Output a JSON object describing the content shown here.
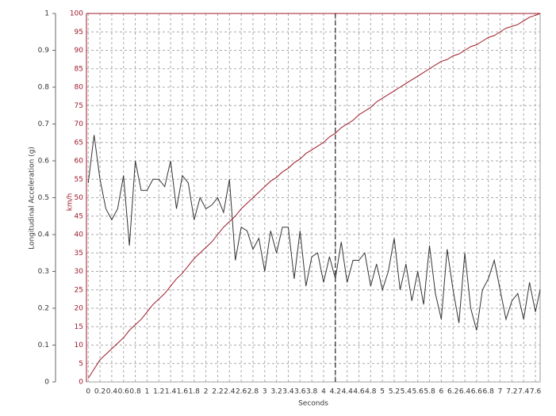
{
  "chart_data": {
    "type": "line",
    "x_label": "Seconds",
    "y_label": "Longitudinal Acceleration (g)",
    "y2_label": "km/h",
    "x": [
      0,
      0.1,
      0.2,
      0.3,
      0.4,
      0.5,
      0.6,
      0.7,
      0.8,
      0.9,
      1.0,
      1.1,
      1.2,
      1.3,
      1.4,
      1.5,
      1.6,
      1.7,
      1.8,
      1.9,
      2.0,
      2.1,
      2.2,
      2.3,
      2.4,
      2.5,
      2.6,
      2.7,
      2.8,
      2.9,
      3.0,
      3.1,
      3.2,
      3.3,
      3.4,
      3.5,
      3.6,
      3.7,
      3.8,
      3.9,
      4.0,
      4.1,
      4.2,
      4.3,
      4.4,
      4.5,
      4.6,
      4.7,
      4.8,
      4.9,
      5.0,
      5.1,
      5.2,
      5.3,
      5.4,
      5.5,
      5.6,
      5.7,
      5.8,
      5.9,
      6.0,
      6.1,
      6.2,
      6.3,
      6.4,
      6.5,
      6.6,
      6.7,
      6.8,
      6.9,
      7.0,
      7.1,
      7.2,
      7.3,
      7.4,
      7.5,
      7.6,
      7.68
    ],
    "series": [
      {
        "name": "Longitudinal Acceleration",
        "color": "#333333",
        "axis": "y",
        "values": [
          0.54,
          0.67,
          0.55,
          0.47,
          0.44,
          0.47,
          0.56,
          0.37,
          0.6,
          0.52,
          0.52,
          0.55,
          0.55,
          0.53,
          0.6,
          0.47,
          0.56,
          0.54,
          0.44,
          0.5,
          0.47,
          0.48,
          0.5,
          0.46,
          0.55,
          0.33,
          0.42,
          0.41,
          0.36,
          0.39,
          0.3,
          0.41,
          0.35,
          0.42,
          0.42,
          0.28,
          0.41,
          0.26,
          0.34,
          0.35,
          0.27,
          0.34,
          0.28,
          0.38,
          0.27,
          0.33,
          0.33,
          0.35,
          0.26,
          0.32,
          0.25,
          0.3,
          0.39,
          0.25,
          0.32,
          0.22,
          0.3,
          0.21,
          0.37,
          0.24,
          0.17,
          0.36,
          0.25,
          0.16,
          0.35,
          0.2,
          0.14,
          0.25,
          0.28,
          0.33,
          0.25,
          0.17,
          0.22,
          0.24,
          0.17,
          0.27,
          0.19,
          0.25
        ]
      },
      {
        "name": "km/h",
        "color": "#a0192a",
        "axis": "y2",
        "values": [
          1,
          3.5,
          6,
          7.5,
          9,
          10.5,
          12,
          14,
          15.5,
          17,
          19,
          21,
          22.5,
          24,
          26,
          28,
          29.5,
          31.5,
          33.5,
          35,
          36.5,
          38,
          40,
          42,
          43.5,
          45,
          47,
          48.5,
          50,
          51.5,
          53,
          54.5,
          55.5,
          57,
          58,
          59.5,
          60.5,
          62,
          63,
          64,
          65,
          66.5,
          67.5,
          69,
          70,
          71,
          72.5,
          73.5,
          74.5,
          76,
          77,
          78,
          79,
          80,
          81,
          82,
          83,
          84,
          85,
          86,
          87,
          87.5,
          88.5,
          89,
          90,
          91,
          91.5,
          92.5,
          93.5,
          94,
          95,
          96,
          96.5,
          97,
          98,
          99,
          99.5,
          100
        ]
      }
    ],
    "xlim": [
      -0.03,
      7.68
    ],
    "xticks": [
      0,
      0.2,
      0.4,
      0.6,
      0.8,
      1,
      1.2,
      1.4,
      1.6,
      1.8,
      2,
      2.2,
      2.4,
      2.6,
      2.8,
      3,
      3.2,
      3.4,
      3.6,
      3.8,
      4,
      4.2,
      4.4,
      4.6,
      4.8,
      5,
      5.2,
      5.4,
      5.6,
      5.8,
      6,
      6.2,
      6.4,
      6.6,
      6.8,
      7,
      7.2,
      7.4,
      7.6
    ],
    "ylim": [
      0,
      1
    ],
    "yticks": [
      0,
      0.1,
      0.2,
      0.3,
      0.4,
      0.5,
      0.6,
      0.7,
      0.8,
      0.9,
      1
    ],
    "y2lim": [
      0,
      100
    ],
    "y2ticks": [
      0,
      5,
      10,
      15,
      20,
      25,
      30,
      35,
      40,
      45,
      50,
      55,
      60,
      65,
      70,
      75,
      80,
      85,
      90,
      95,
      100
    ],
    "vlines": [
      4.2
    ],
    "grid": true
  }
}
